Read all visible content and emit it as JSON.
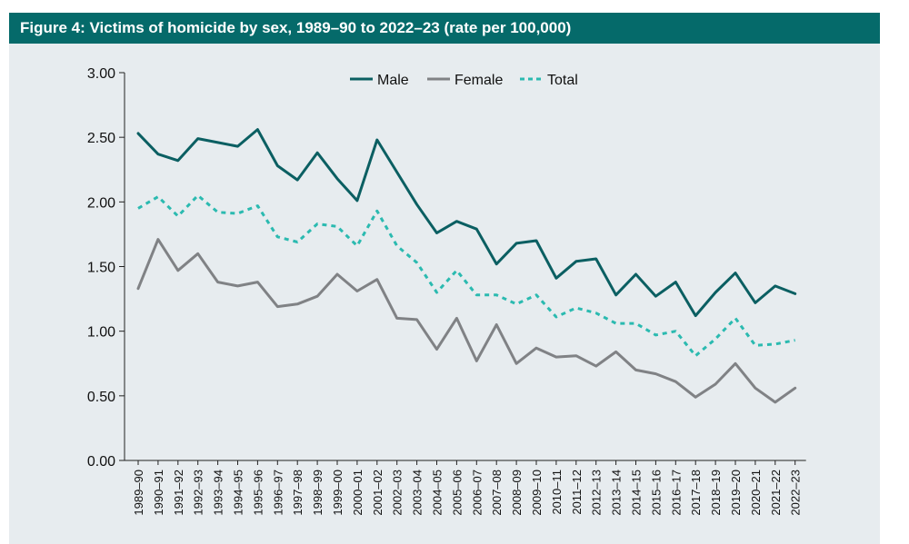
{
  "figure": {
    "title": "Figure 4: Victims of homicide by sex, 1989–90 to 2022–23 (rate per 100,000)"
  },
  "colors": {
    "header_bg": "#056a6a",
    "plot_bg": "#e7ecef",
    "male": "#0b5f62",
    "female": "#808285",
    "total": "#2bbab0"
  },
  "chart_data": {
    "type": "line",
    "title": "Figure 4: Victims of homicide by sex, 1989–90 to 2022–23 (rate per 100,000)",
    "xlabel": "",
    "ylabel": "",
    "ylim": [
      0,
      3
    ],
    "yticks": [
      "0.00",
      "0.50",
      "1.00",
      "1.50",
      "2.00",
      "2.50",
      "3.00"
    ],
    "ytick_values": [
      0,
      0.5,
      1.0,
      1.5,
      2.0,
      2.5,
      3.0
    ],
    "grid": false,
    "legend_position": "top-center",
    "categories": [
      "1989–90",
      "1990–91",
      "1991–92",
      "1992–93",
      "1993–94",
      "1994–95",
      "1995–96",
      "1996–97",
      "1997–98",
      "1998–99",
      "1999–00",
      "2000–01",
      "2001–02",
      "2002–03",
      "2003–04",
      "2004–05",
      "2005–06",
      "2006–07",
      "2007–08",
      "2008–09",
      "2009–10",
      "2010–11",
      "2011–12",
      "2012–13",
      "2013–14",
      "2014–15",
      "2015–16",
      "2016–17",
      "2017–18",
      "2018–19",
      "2019–20",
      "2020–21",
      "2021–22",
      "2022–23"
    ],
    "series": [
      {
        "name": "Male",
        "style": "solid",
        "values": [
          2.53,
          2.37,
          2.32,
          2.49,
          2.46,
          2.43,
          2.56,
          2.28,
          2.17,
          2.38,
          2.18,
          2.01,
          2.48,
          2.23,
          1.98,
          1.76,
          1.85,
          1.79,
          1.52,
          1.68,
          1.7,
          1.41,
          1.54,
          1.56,
          1.28,
          1.44,
          1.27,
          1.38,
          1.12,
          1.3,
          1.45,
          1.22,
          1.35,
          1.29
        ]
      },
      {
        "name": "Female",
        "style": "solid",
        "values": [
          1.33,
          1.71,
          1.47,
          1.6,
          1.38,
          1.35,
          1.38,
          1.19,
          1.21,
          1.27,
          1.44,
          1.31,
          1.4,
          1.1,
          1.09,
          0.86,
          1.1,
          0.77,
          1.05,
          0.75,
          0.87,
          0.8,
          0.81,
          0.73,
          0.84,
          0.7,
          0.67,
          0.61,
          0.49,
          0.59,
          0.75,
          0.56,
          0.45,
          0.56
        ]
      },
      {
        "name": "Total",
        "style": "dashed",
        "values": [
          1.95,
          2.04,
          1.89,
          2.05,
          1.92,
          1.91,
          1.97,
          1.73,
          1.69,
          1.83,
          1.81,
          1.66,
          1.93,
          1.66,
          1.53,
          1.3,
          1.47,
          1.28,
          1.28,
          1.21,
          1.28,
          1.11,
          1.18,
          1.14,
          1.06,
          1.06,
          0.97,
          1.0,
          0.81,
          0.94,
          1.1,
          0.89,
          0.9,
          0.93
        ]
      }
    ]
  }
}
